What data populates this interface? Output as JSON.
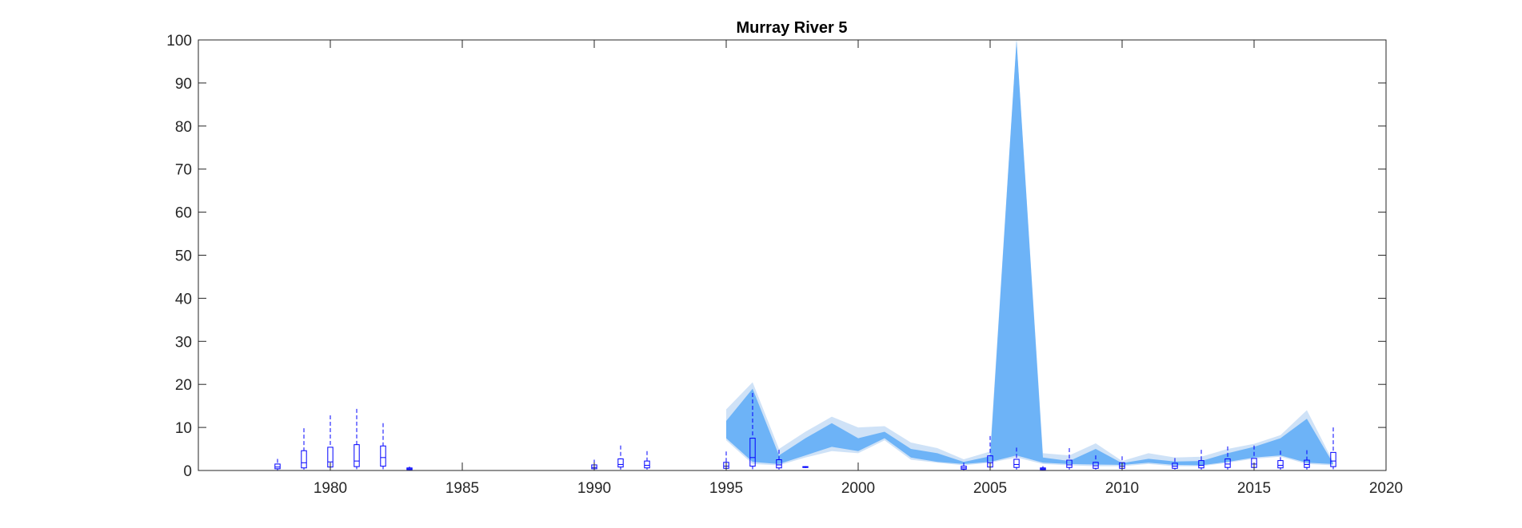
{
  "chart_data": {
    "type": "area",
    "title": "Murray River 5",
    "xlabel": "",
    "ylabel": "",
    "xlim": [
      1975,
      2020
    ],
    "ylim": [
      0,
      100
    ],
    "x_ticks": [
      1980,
      1985,
      1990,
      1995,
      2000,
      2005,
      2010,
      2015,
      2020
    ],
    "y_ticks": [
      0,
      10,
      20,
      30,
      40,
      50,
      60,
      70,
      80,
      90,
      100
    ],
    "grid": false,
    "legend": "none",
    "colors": {
      "outer_band": "#cfe2f7",
      "inner_band": "#6db3f7",
      "box": "#0000ff",
      "axis": "#262626"
    },
    "bands": [
      {
        "segment": 1,
        "x": [
          1995,
          1996,
          1997,
          1998,
          1999,
          2000,
          2001,
          2002,
          2003,
          2004,
          2005,
          2006,
          2007,
          2008,
          2009,
          2010,
          2011,
          2012,
          2013,
          2014,
          2015,
          2016,
          2017,
          2018
        ],
        "outer_upper": [
          14.2,
          20.5,
          5.0,
          9.0,
          12.5,
          10.0,
          10.3,
          6.5,
          5.2,
          2.6,
          4.4,
          100.0,
          4.0,
          3.5,
          6.3,
          2.2,
          4.0,
          3.0,
          3.2,
          5.0,
          6.2,
          8.2,
          14.0,
          2.0
        ],
        "inner_upper": [
          11.5,
          19.0,
          3.5,
          7.5,
          11.0,
          7.5,
          9.0,
          5.0,
          4.0,
          2.0,
          3.3,
          100.0,
          3.0,
          2.2,
          5.0,
          1.7,
          2.7,
          2.1,
          2.2,
          4.0,
          5.5,
          7.5,
          12.0,
          1.6
        ],
        "inner_lower": [
          7.5,
          2.0,
          1.5,
          3.5,
          5.5,
          4.5,
          7.5,
          3.0,
          2.0,
          1.5,
          2.0,
          3.5,
          1.8,
          1.5,
          1.4,
          1.3,
          1.8,
          1.3,
          1.2,
          2.0,
          3.0,
          3.5,
          1.8,
          1.5
        ],
        "outer_lower": [
          7.0,
          1.5,
          1.2,
          3.0,
          4.5,
          4.0,
          7.0,
          2.5,
          1.8,
          1.2,
          1.8,
          3.0,
          1.5,
          1.2,
          1.0,
          1.0,
          1.5,
          1.0,
          1.0,
          1.8,
          2.7,
          3.2,
          1.5,
          1.2
        ]
      }
    ],
    "boxplots": [
      {
        "x": 1978,
        "min": 0.1,
        "q1": 0.4,
        "median": 0.8,
        "q3": 1.5,
        "max": 2.7
      },
      {
        "x": 1979,
        "min": 0.2,
        "q1": 0.6,
        "median": 1.8,
        "q3": 4.6,
        "max": 9.8
      },
      {
        "x": 1980,
        "min": 0.3,
        "q1": 0.8,
        "median": 2.0,
        "q3": 5.4,
        "max": 12.8
      },
      {
        "x": 1981,
        "min": 0.3,
        "q1": 0.9,
        "median": 2.2,
        "q3": 6.0,
        "max": 14.3
      },
      {
        "x": 1982,
        "min": 0.3,
        "q1": 1.0,
        "median": 3.0,
        "q3": 5.7,
        "max": 11.0
      },
      {
        "x": 1983,
        "min": 0.1,
        "q1": 0.2,
        "median": 0.4,
        "q3": 0.6,
        "max": 0.9
      },
      {
        "x": 1990,
        "min": 0.1,
        "q1": 0.4,
        "median": 0.7,
        "q3": 1.3,
        "max": 2.5
      },
      {
        "x": 1991,
        "min": 0.2,
        "q1": 0.8,
        "median": 1.4,
        "q3": 2.7,
        "max": 5.8
      },
      {
        "x": 1992,
        "min": 0.2,
        "q1": 0.6,
        "median": 1.2,
        "q3": 2.2,
        "max": 4.5
      },
      {
        "x": 1995,
        "min": 0.2,
        "q1": 0.5,
        "median": 1.0,
        "q3": 1.9,
        "max": 4.4
      },
      {
        "x": 1996,
        "min": 0.3,
        "q1": 1.0,
        "median": 3.0,
        "q3": 7.5,
        "max": 18.0
      },
      {
        "x": 1997,
        "min": 0.2,
        "q1": 0.6,
        "median": 1.3,
        "q3": 2.5,
        "max": 4.8
      },
      {
        "x": 1998,
        "min": 0.6,
        "q1": 0.7,
        "median": 0.8,
        "q3": 0.9,
        "max": 1.0
      },
      {
        "x": 2004,
        "min": 0.1,
        "q1": 0.3,
        "median": 0.6,
        "q3": 1.0,
        "max": 1.8
      },
      {
        "x": 2005,
        "min": 0.2,
        "q1": 0.8,
        "median": 1.8,
        "q3": 3.4,
        "max": 8.0
      },
      {
        "x": 2006,
        "min": 0.2,
        "q1": 0.7,
        "median": 1.4,
        "q3": 2.6,
        "max": 5.3
      },
      {
        "x": 2007,
        "min": 0.1,
        "q1": 0.2,
        "median": 0.4,
        "q3": 0.6,
        "max": 1.0
      },
      {
        "x": 2008,
        "min": 0.2,
        "q1": 0.7,
        "median": 1.3,
        "q3": 2.4,
        "max": 5.2
      },
      {
        "x": 2009,
        "min": 0.2,
        "q1": 0.5,
        "median": 1.1,
        "q3": 1.9,
        "max": 3.5
      },
      {
        "x": 2010,
        "min": 0.2,
        "q1": 0.5,
        "median": 1.0,
        "q3": 1.8,
        "max": 3.3
      },
      {
        "x": 2012,
        "min": 0.2,
        "q1": 0.5,
        "median": 1.0,
        "q3": 1.7,
        "max": 2.9
      },
      {
        "x": 2013,
        "min": 0.2,
        "q1": 0.6,
        "median": 1.2,
        "q3": 2.3,
        "max": 4.8
      },
      {
        "x": 2014,
        "min": 0.2,
        "q1": 0.7,
        "median": 1.5,
        "q3": 2.7,
        "max": 5.6
      },
      {
        "x": 2015,
        "min": 0.2,
        "q1": 0.7,
        "median": 1.5,
        "q3": 2.8,
        "max": 5.8
      },
      {
        "x": 2016,
        "min": 0.2,
        "q1": 0.6,
        "median": 1.2,
        "q3": 2.3,
        "max": 4.6
      },
      {
        "x": 2017,
        "min": 0.2,
        "q1": 0.7,
        "median": 1.4,
        "q3": 2.4,
        "max": 4.7
      },
      {
        "x": 2018,
        "min": 0.3,
        "q1": 0.9,
        "median": 2.2,
        "q3": 4.2,
        "max": 10.0
      }
    ]
  }
}
